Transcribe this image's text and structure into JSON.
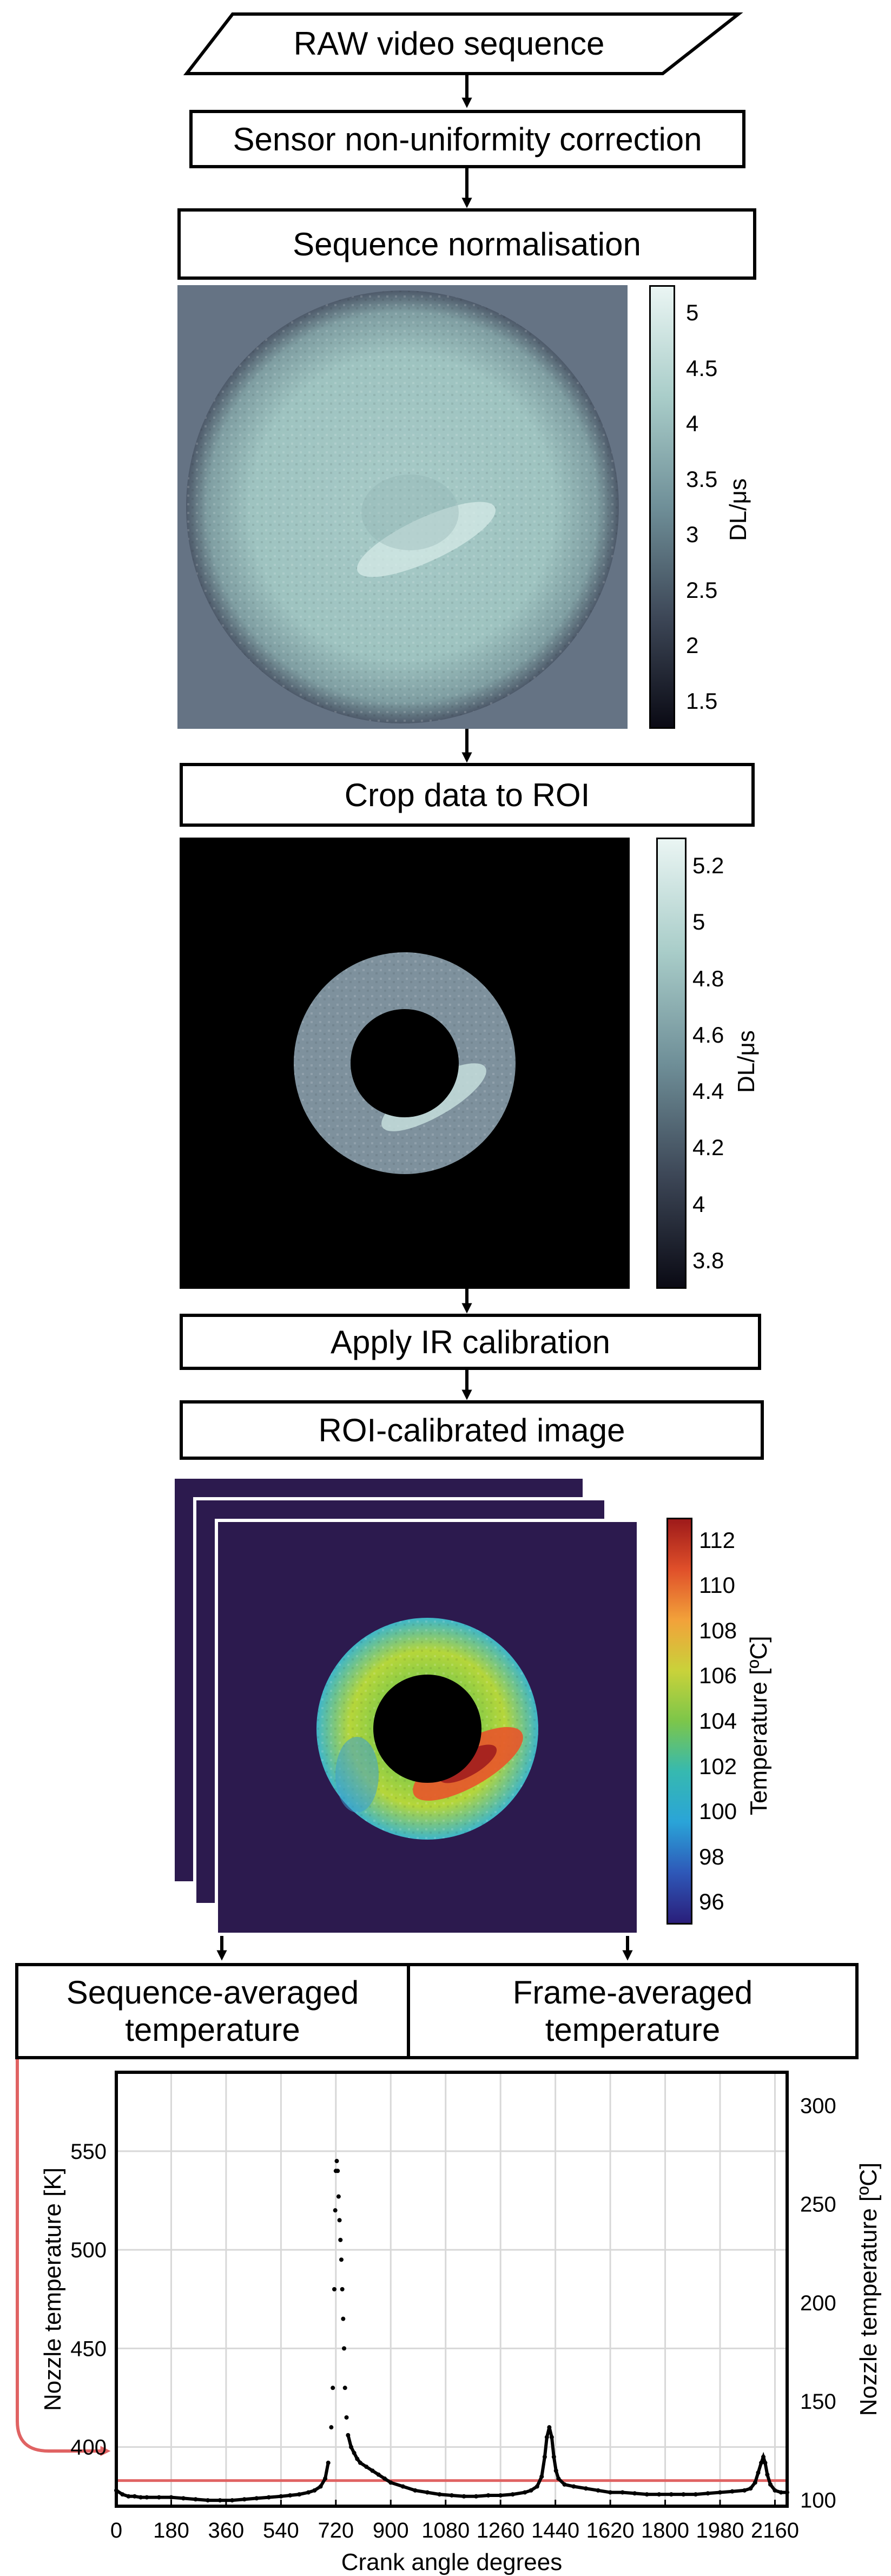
{
  "flow": {
    "raw": "RAW video sequence",
    "sensor": "Sensor non-uniformity correction",
    "norm": "Sequence normalisation",
    "crop": "Crop data to ROI",
    "calib": "Apply IR calibration",
    "roi_image": "ROI-calibrated image",
    "seq_avg": "Sequence-averaged temperature",
    "frame_avg": "Frame-averaged temperature"
  },
  "colorbars": {
    "norm": {
      "title": "DL/μs",
      "ticks": [
        "5",
        "4.5",
        "4",
        "3.5",
        "3",
        "2.5",
        "2",
        "1.5"
      ]
    },
    "crop": {
      "title": "DL/μs",
      "ticks": [
        "5.2",
        "5",
        "4.8",
        "4.6",
        "4.4",
        "4.2",
        "4",
        "3.8"
      ]
    },
    "temp": {
      "title": "Temperature [ºC]",
      "ticks": [
        "112",
        "110",
        "108",
        "106",
        "104",
        "102",
        "100",
        "98",
        "96"
      ]
    }
  },
  "chart_data": {
    "type": "scatter",
    "xlabel": "Crank angle degrees",
    "ylabel": "Nozzle temperature [K]",
    "y2label": "Nozzle temperature [ºC]",
    "xlim": [
      0,
      2200
    ],
    "ylim": [
      370,
      590
    ],
    "x_ticks": [
      0,
      180,
      360,
      540,
      720,
      900,
      1080,
      1260,
      1440,
      1620,
      1800,
      1980,
      2160
    ],
    "y_ticks": [
      400,
      450,
      500,
      550
    ],
    "y2_ticks": [
      100,
      150,
      200,
      250,
      300
    ],
    "grid": true,
    "series": [
      {
        "points": [
          [
            0,
            378
          ],
          [
            20,
            376
          ],
          [
            40,
            375
          ],
          [
            60,
            375
          ],
          [
            80,
            374.5
          ],
          [
            100,
            374.5
          ],
          [
            140,
            374.5
          ],
          [
            180,
            374.5
          ],
          [
            220,
            374
          ],
          [
            260,
            373.5
          ],
          [
            300,
            373
          ],
          [
            340,
            373
          ],
          [
            380,
            373
          ],
          [
            420,
            373.5
          ],
          [
            460,
            374
          ],
          [
            500,
            374.5
          ],
          [
            540,
            375
          ],
          [
            570,
            375.5
          ],
          [
            600,
            376
          ],
          [
            630,
            377
          ],
          [
            650,
            378
          ],
          [
            670,
            380
          ],
          [
            685,
            384
          ],
          [
            695,
            392
          ],
          [
            705,
            410
          ],
          [
            710,
            430
          ],
          [
            715,
            480
          ],
          [
            718,
            520
          ],
          [
            720,
            540
          ],
          [
            723,
            545
          ],
          [
            726,
            540
          ],
          [
            729,
            527
          ],
          [
            732,
            515
          ],
          [
            735,
            505
          ],
          [
            738,
            495
          ],
          [
            741,
            480
          ],
          [
            744,
            465
          ],
          [
            747,
            450
          ],
          [
            750,
            430
          ],
          [
            755,
            415
          ],
          [
            760,
            406
          ],
          [
            770,
            400
          ],
          [
            780,
            397
          ],
          [
            790,
            394
          ],
          [
            800,
            392
          ],
          [
            820,
            390
          ],
          [
            840,
            388
          ],
          [
            860,
            386
          ],
          [
            880,
            384
          ],
          [
            900,
            382
          ],
          [
            940,
            380
          ],
          [
            980,
            378
          ],
          [
            1020,
            377
          ],
          [
            1060,
            376
          ],
          [
            1100,
            375.5
          ],
          [
            1140,
            375
          ],
          [
            1180,
            375
          ],
          [
            1220,
            375.5
          ],
          [
            1260,
            375.5
          ],
          [
            1300,
            376
          ],
          [
            1340,
            377
          ],
          [
            1360,
            378
          ],
          [
            1380,
            380
          ],
          [
            1395,
            385
          ],
          [
            1405,
            395
          ],
          [
            1412,
            405
          ],
          [
            1420,
            410
          ],
          [
            1428,
            405
          ],
          [
            1435,
            395
          ],
          [
            1442,
            388
          ],
          [
            1450,
            384
          ],
          [
            1470,
            381
          ],
          [
            1500,
            380
          ],
          [
            1540,
            379
          ],
          [
            1580,
            378
          ],
          [
            1620,
            377
          ],
          [
            1660,
            377
          ],
          [
            1700,
            376.5
          ],
          [
            1740,
            376
          ],
          [
            1780,
            376
          ],
          [
            1820,
            376
          ],
          [
            1860,
            376
          ],
          [
            1900,
            376
          ],
          [
            1940,
            376.5
          ],
          [
            1980,
            377
          ],
          [
            2020,
            377.5
          ],
          [
            2060,
            378
          ],
          [
            2080,
            379
          ],
          [
            2095,
            382
          ],
          [
            2105,
            387
          ],
          [
            2115,
            392
          ],
          [
            2122,
            395
          ],
          [
            2128,
            392
          ],
          [
            2135,
            386
          ],
          [
            2145,
            381
          ],
          [
            2160,
            378
          ],
          [
            2180,
            377
          ],
          [
            2200,
            377
          ]
        ]
      }
    ],
    "reference_line": 383
  }
}
